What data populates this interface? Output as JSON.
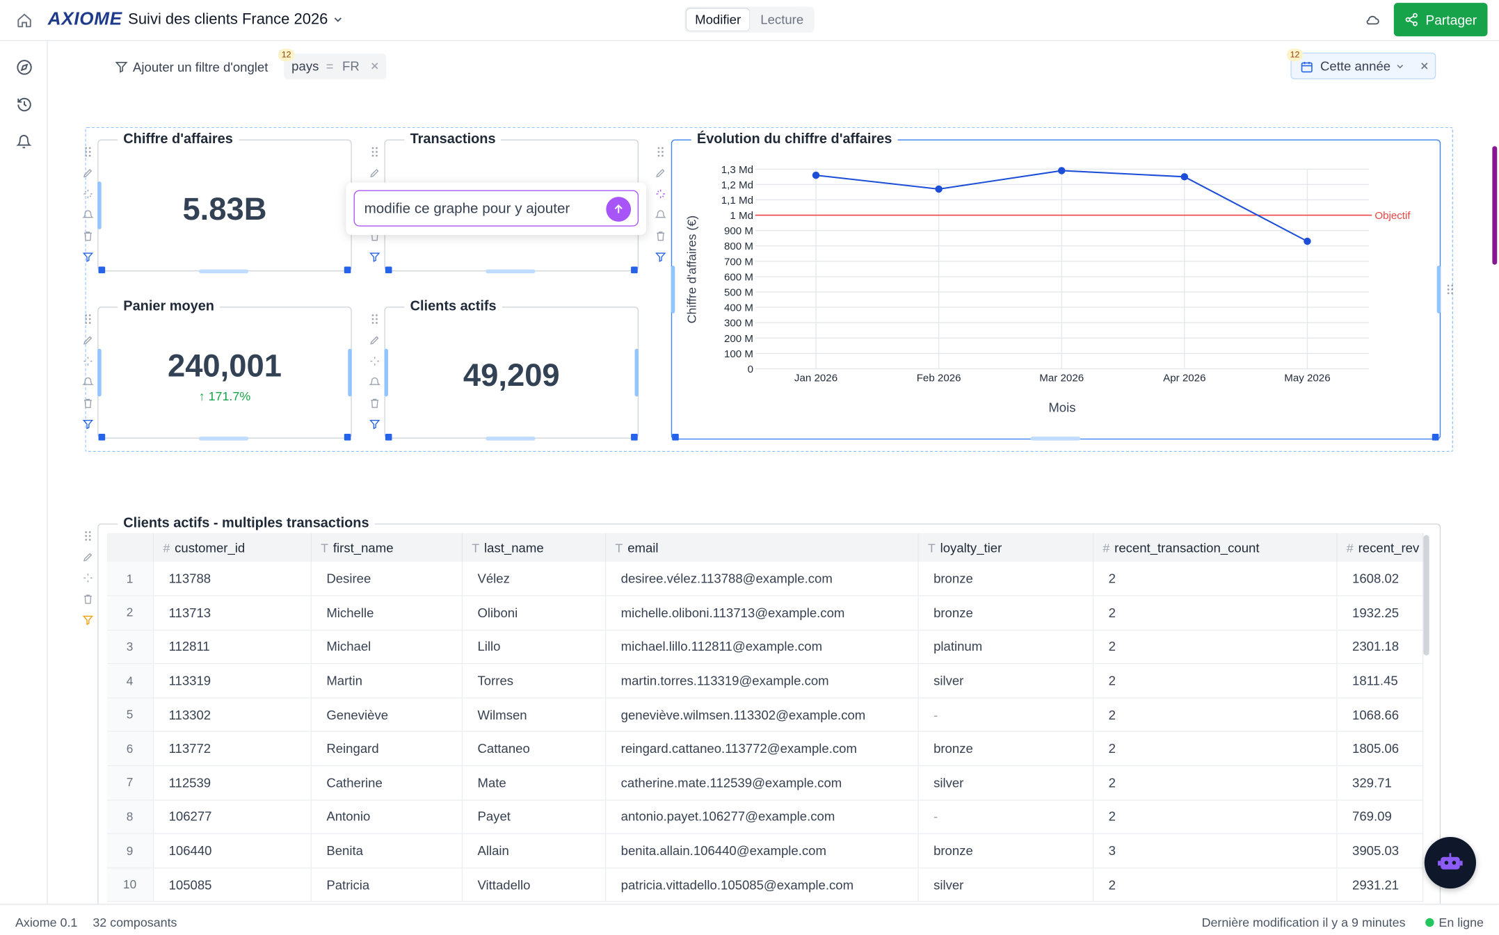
{
  "header": {
    "logo": "AXIOME",
    "title": "Suivi des clients France 2026",
    "mode_tabs": [
      "Modifier",
      "Lecture"
    ],
    "share_label": "Partager"
  },
  "filters": {
    "add_filter_label": "Ajouter un filtre d'onglet",
    "pill_badge": "12",
    "pill_field": "pays",
    "pill_op": "=",
    "pill_value": "FR",
    "date_badge": "12",
    "date_label": "Cette année"
  },
  "kpis": {
    "revenue": {
      "title": "Chiffre d'affaires",
      "value": "5.83B"
    },
    "transactions": {
      "title": "Transactions"
    },
    "basket": {
      "title": "Panier moyen",
      "value": "240,001",
      "delta": "↑ 171.7%"
    },
    "clients": {
      "title": "Clients actifs",
      "value": "49,209"
    }
  },
  "prompt": {
    "text": "modifie ce graphe pour y ajouter"
  },
  "chart_data": {
    "type": "line",
    "title": "Évolution du chiffre d'affaires",
    "xlabel": "Mois",
    "ylabel": "Chiffre d'affaires (€)",
    "categories": [
      "Jan 2026",
      "Feb 2026",
      "Mar 2026",
      "Apr 2026",
      "May 2026"
    ],
    "values": [
      1260000000,
      1170000000,
      1290000000,
      1250000000,
      830000000
    ],
    "ylim": [
      0,
      1300000000
    ],
    "yticks": [
      "0",
      "100 M",
      "200 M",
      "300 M",
      "400 M",
      "500 M",
      "600 M",
      "700 M",
      "800 M",
      "900 M",
      "1 Md",
      "1,1 Md",
      "1,2 Md",
      "1,3 Md"
    ],
    "reference_line": {
      "label": "Objectif",
      "value": 1000000000,
      "color": "#ef4444"
    },
    "series_color": "#1d4ed8",
    "grid": true
  },
  "table": {
    "title": "Clients actifs - multiples transactions",
    "columns": [
      {
        "icon": "#",
        "name": "customer_id"
      },
      {
        "icon": "T",
        "name": "first_name"
      },
      {
        "icon": "T",
        "name": "last_name"
      },
      {
        "icon": "T",
        "name": "email"
      },
      {
        "icon": "T",
        "name": "loyalty_tier"
      },
      {
        "icon": "#",
        "name": "recent_transaction_count"
      },
      {
        "icon": "#",
        "name": "recent_rev"
      }
    ],
    "rows": [
      [
        "1",
        "113788",
        "Desiree",
        "Vélez",
        "desiree.vélez.113788@example.com",
        "bronze",
        "2",
        "1608.02"
      ],
      [
        "2",
        "113713",
        "Michelle",
        "Oliboni",
        "michelle.oliboni.113713@example.com",
        "bronze",
        "2",
        "1932.25"
      ],
      [
        "3",
        "112811",
        "Michael",
        "Lillo",
        "michael.lillo.112811@example.com",
        "platinum",
        "2",
        "2301.18"
      ],
      [
        "4",
        "113319",
        "Martin",
        "Torres",
        "martin.torres.113319@example.com",
        "silver",
        "2",
        "1811.45"
      ],
      [
        "5",
        "113302",
        "Geneviève",
        "Wilmsen",
        "geneviève.wilmsen.113302@example.com",
        "-",
        "2",
        "1068.66"
      ],
      [
        "6",
        "113772",
        "Reingard",
        "Cattaneo",
        "reingard.cattaneo.113772@example.com",
        "bronze",
        "2",
        "1805.06"
      ],
      [
        "7",
        "112539",
        "Catherine",
        "Mate",
        "catherine.mate.112539@example.com",
        "silver",
        "2",
        "329.71"
      ],
      [
        "8",
        "106277",
        "Antonio",
        "Payet",
        "antonio.payet.106277@example.com",
        "-",
        "2",
        "769.09"
      ],
      [
        "9",
        "106440",
        "Benita",
        "Allain",
        "benita.allain.106440@example.com",
        "bronze",
        "3",
        "3905.03"
      ],
      [
        "10",
        "105085",
        "Patricia",
        "Vittadello",
        "patricia.vittadello.105085@example.com",
        "silver",
        "2",
        "2931.21"
      ]
    ]
  },
  "footer": {
    "version": "Axiome 0.1",
    "components": "32 composants",
    "last_modified": "Dernière modification il y a 9 minutes",
    "status": "En ligne"
  },
  "colors": {
    "accent": "#16a34a",
    "brand": "#1e3a8a",
    "selection": "#2563eb",
    "prompt_border": "#a855f7",
    "scroll_accent": "#86198f"
  }
}
